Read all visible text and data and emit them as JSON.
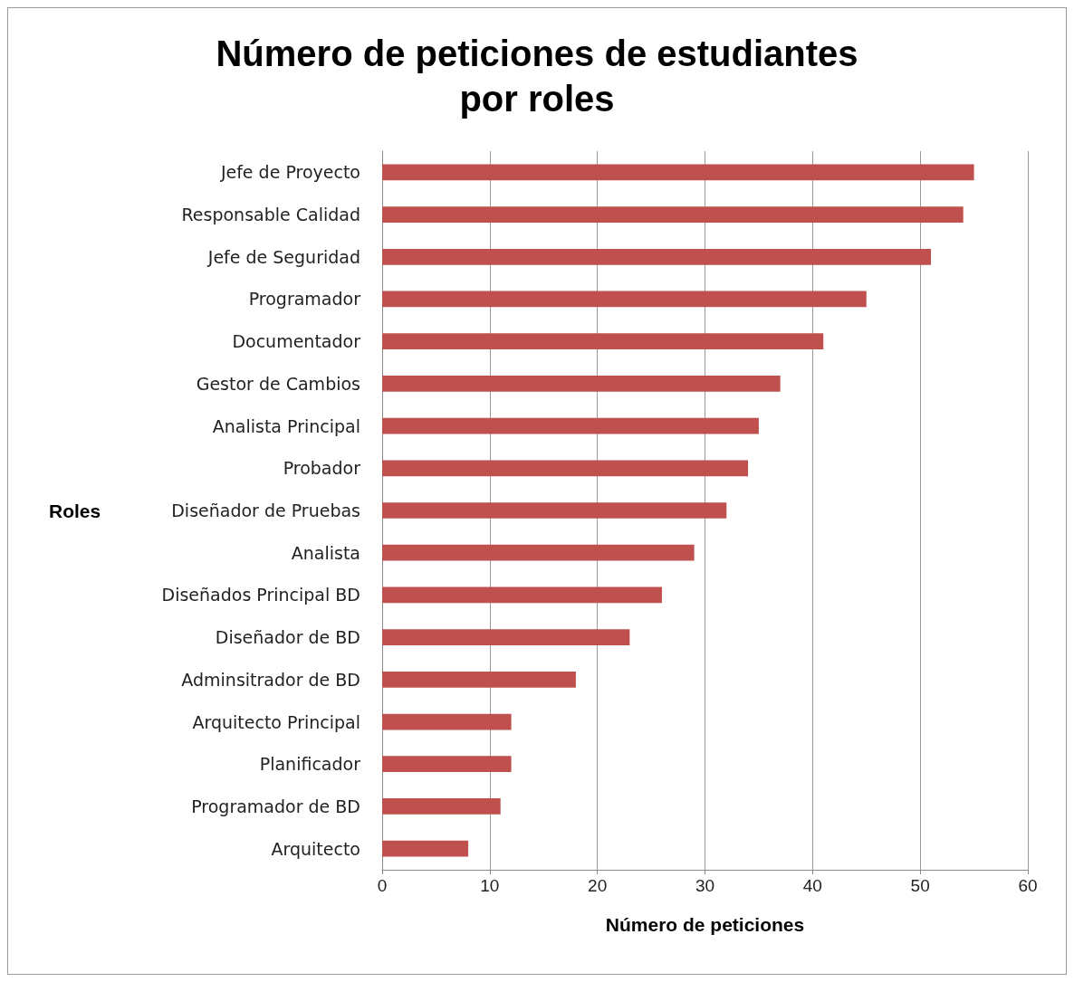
{
  "chart_data": {
    "type": "bar",
    "orientation": "horizontal",
    "title": "Número de peticiones de estudiantes\npor roles",
    "xlabel": "Número de peticiones",
    "ylabel": "Roles",
    "categories": [
      "Jefe de Proyecto",
      "Responsable Calidad",
      "Jefe de Seguridad",
      "Programador",
      "Documentador",
      "Gestor de Cambios",
      "Analista Principal",
      "Probador",
      "Diseñador de Pruebas",
      "Analista",
      "Diseñados Principal BD",
      "Diseñador de BD",
      "Adminsitrador de BD",
      "Arquitecto Principal",
      "Planificador",
      "Programador de BD",
      "Arquitecto"
    ],
    "values": [
      55,
      54,
      51,
      45,
      41,
      37,
      35,
      34,
      32,
      29,
      26,
      23,
      18,
      12,
      12,
      11,
      8
    ],
    "color": "#c0504d",
    "xlim": [
      0,
      60
    ],
    "xticks": [
      0,
      10,
      20,
      30,
      40,
      50,
      60
    ],
    "grid": "x"
  }
}
